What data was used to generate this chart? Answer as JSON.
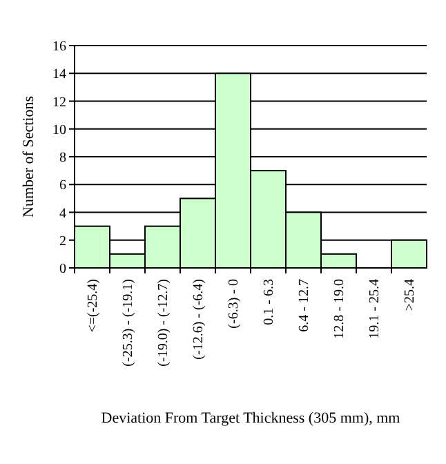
{
  "chart_data": {
    "type": "bar",
    "xlabel": "Deviation From Target Thickness (305 mm), mm",
    "ylabel": "Number of Sections",
    "categories": [
      "<=(-25.4)",
      "(-25.3) - (-19.1)",
      "(-19.0) - (-12.7)",
      "(-12.6) - (-6.4)",
      "(-6.3) - 0",
      "0.1 - 6.3",
      "6.4 - 12.7",
      "12.8 - 19.0",
      "19.1 - 25.4",
      ">25.4"
    ],
    "values": [
      3,
      1,
      3,
      5,
      14,
      7,
      4,
      1,
      0,
      2
    ],
    "color": "#ccffcc",
    "ylim": [
      0,
      16
    ],
    "yticks": [
      0,
      2,
      4,
      6,
      8,
      10,
      12,
      14,
      16
    ],
    "grid": "y"
  }
}
